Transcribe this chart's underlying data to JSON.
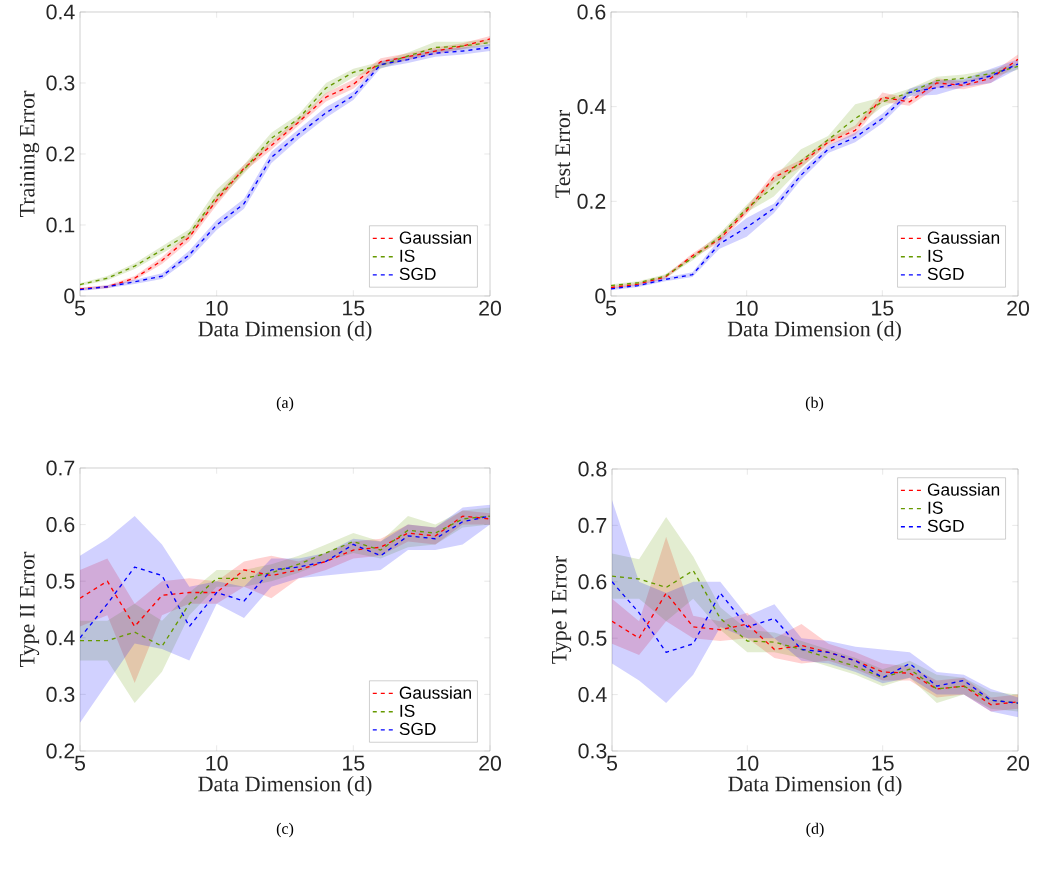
{
  "chart_data": [
    {
      "type": "line",
      "xlabel": "Data Dimension (d)",
      "ylabel": "Training Error",
      "annotations": [
        "(a)"
      ],
      "x": [
        5,
        6,
        7,
        8,
        9,
        10,
        11,
        12,
        13,
        14,
        15,
        16,
        17,
        18,
        19,
        20
      ],
      "xlim": [
        5,
        20
      ],
      "xticks": [
        5,
        10,
        15,
        20
      ],
      "ylim": [
        0,
        0.4
      ],
      "yticks": [
        0,
        0.1,
        0.2,
        0.3,
        0.4
      ],
      "legend": "bottom right",
      "line_style": "dashed",
      "series": [
        {
          "name": "Gaussian",
          "color": "#ff0000",
          "values": [
            0.01,
            0.013,
            0.025,
            0.05,
            0.083,
            0.135,
            0.18,
            0.212,
            0.245,
            0.28,
            0.298,
            0.33,
            0.337,
            0.345,
            0.352,
            0.362
          ],
          "lower": [
            0.008,
            0.011,
            0.022,
            0.045,
            0.077,
            0.128,
            0.175,
            0.206,
            0.24,
            0.274,
            0.292,
            0.324,
            0.332,
            0.34,
            0.348,
            0.357
          ],
          "upper": [
            0.012,
            0.015,
            0.028,
            0.055,
            0.089,
            0.142,
            0.185,
            0.218,
            0.25,
            0.286,
            0.305,
            0.335,
            0.342,
            0.35,
            0.356,
            0.366
          ]
        },
        {
          "name": "IS",
          "color": "#669900",
          "values": [
            0.016,
            0.025,
            0.042,
            0.065,
            0.088,
            0.14,
            0.178,
            0.222,
            0.25,
            0.293,
            0.315,
            0.325,
            0.338,
            0.35,
            0.352,
            0.357
          ],
          "lower": [
            0.014,
            0.022,
            0.038,
            0.06,
            0.082,
            0.132,
            0.172,
            0.215,
            0.244,
            0.285,
            0.308,
            0.32,
            0.333,
            0.343,
            0.347,
            0.352
          ],
          "upper": [
            0.018,
            0.028,
            0.046,
            0.07,
            0.094,
            0.15,
            0.185,
            0.23,
            0.256,
            0.3,
            0.32,
            0.33,
            0.343,
            0.358,
            0.358,
            0.362
          ]
        },
        {
          "name": "SGD",
          "color": "#0000ff",
          "values": [
            0.009,
            0.013,
            0.02,
            0.028,
            0.058,
            0.1,
            0.13,
            0.195,
            0.228,
            0.258,
            0.282,
            0.326,
            0.333,
            0.342,
            0.345,
            0.35
          ],
          "lower": [
            0.007,
            0.011,
            0.017,
            0.024,
            0.052,
            0.093,
            0.123,
            0.187,
            0.221,
            0.251,
            0.276,
            0.321,
            0.328,
            0.337,
            0.34,
            0.345
          ],
          "upper": [
            0.011,
            0.015,
            0.023,
            0.032,
            0.064,
            0.107,
            0.137,
            0.203,
            0.235,
            0.266,
            0.288,
            0.331,
            0.338,
            0.347,
            0.35,
            0.355
          ]
        }
      ]
    },
    {
      "type": "line",
      "xlabel": "Data Dimension (d)",
      "ylabel": "Test Error",
      "annotations": [
        "(b)"
      ],
      "x": [
        5,
        6,
        7,
        8,
        9,
        10,
        11,
        12,
        13,
        14,
        15,
        16,
        17,
        18,
        19,
        20
      ],
      "xlim": [
        5,
        20
      ],
      "xticks": [
        5,
        10,
        15,
        20
      ],
      "ylim": [
        0,
        0.6
      ],
      "yticks": [
        0,
        0.2,
        0.4,
        0.6
      ],
      "legend": "bottom right",
      "line_style": "dashed",
      "series": [
        {
          "name": "Gaussian",
          "color": "#ff0000",
          "values": [
            0.018,
            0.025,
            0.04,
            0.085,
            0.12,
            0.18,
            0.25,
            0.28,
            0.325,
            0.35,
            0.42,
            0.41,
            0.45,
            0.445,
            0.46,
            0.5
          ],
          "lower": [
            0.015,
            0.022,
            0.036,
            0.08,
            0.113,
            0.172,
            0.24,
            0.272,
            0.318,
            0.34,
            0.41,
            0.402,
            0.44,
            0.437,
            0.45,
            0.49
          ],
          "upper": [
            0.021,
            0.028,
            0.044,
            0.09,
            0.127,
            0.188,
            0.26,
            0.288,
            0.332,
            0.36,
            0.43,
            0.418,
            0.46,
            0.453,
            0.47,
            0.51
          ]
        },
        {
          "name": "IS",
          "color": "#669900",
          "values": [
            0.022,
            0.028,
            0.042,
            0.08,
            0.125,
            0.185,
            0.23,
            0.285,
            0.33,
            0.375,
            0.41,
            0.43,
            0.455,
            0.46,
            0.47,
            0.485
          ],
          "lower": [
            0.019,
            0.025,
            0.038,
            0.075,
            0.118,
            0.177,
            0.21,
            0.27,
            0.322,
            0.355,
            0.4,
            0.422,
            0.447,
            0.452,
            0.462,
            0.478
          ],
          "upper": [
            0.025,
            0.031,
            0.046,
            0.085,
            0.132,
            0.193,
            0.25,
            0.31,
            0.338,
            0.405,
            0.42,
            0.438,
            0.463,
            0.468,
            0.478,
            0.492
          ]
        },
        {
          "name": "SGD",
          "color": "#0000ff",
          "values": [
            0.015,
            0.022,
            0.035,
            0.045,
            0.11,
            0.145,
            0.185,
            0.255,
            0.31,
            0.335,
            0.375,
            0.43,
            0.44,
            0.45,
            0.465,
            0.49
          ],
          "lower": [
            0.012,
            0.019,
            0.031,
            0.04,
            0.1,
            0.125,
            0.175,
            0.245,
            0.302,
            0.325,
            0.365,
            0.422,
            0.425,
            0.442,
            0.45,
            0.48
          ],
          "upper": [
            0.018,
            0.025,
            0.039,
            0.05,
            0.12,
            0.165,
            0.195,
            0.265,
            0.318,
            0.345,
            0.385,
            0.438,
            0.455,
            0.458,
            0.48,
            0.5
          ]
        }
      ]
    },
    {
      "type": "line",
      "xlabel": "Data Dimension (d)",
      "ylabel": "Type II Error",
      "annotations": [
        "(c)"
      ],
      "x": [
        5,
        6,
        7,
        8,
        9,
        10,
        11,
        12,
        13,
        14,
        15,
        16,
        17,
        18,
        19,
        20
      ],
      "xlim": [
        5,
        20
      ],
      "xticks": [
        5,
        10,
        15,
        20
      ],
      "ylim": [
        0.2,
        0.7
      ],
      "yticks": [
        0.2,
        0.3,
        0.4,
        0.5,
        0.6,
        0.7
      ],
      "legend": "bottom right",
      "line_style": "dashed",
      "series": [
        {
          "name": "Gaussian",
          "color": "#ff0000",
          "values": [
            0.47,
            0.5,
            0.42,
            0.475,
            0.48,
            0.48,
            0.52,
            0.51,
            0.52,
            0.535,
            0.555,
            0.56,
            0.585,
            0.58,
            0.615,
            0.61
          ],
          "lower": [
            0.42,
            0.44,
            0.32,
            0.44,
            0.46,
            0.46,
            0.49,
            0.47,
            0.505,
            0.52,
            0.54,
            0.545,
            0.57,
            0.565,
            0.6,
            0.6
          ],
          "upper": [
            0.52,
            0.54,
            0.46,
            0.5,
            0.505,
            0.5,
            0.535,
            0.545,
            0.535,
            0.55,
            0.57,
            0.575,
            0.6,
            0.595,
            0.625,
            0.62
          ]
        },
        {
          "name": "IS",
          "color": "#669900",
          "values": [
            0.395,
            0.395,
            0.41,
            0.385,
            0.46,
            0.505,
            0.505,
            0.515,
            0.53,
            0.55,
            0.57,
            0.555,
            0.59,
            0.585,
            0.61,
            0.615
          ],
          "lower": [
            0.36,
            0.36,
            0.285,
            0.34,
            0.44,
            0.49,
            0.49,
            0.5,
            0.515,
            0.535,
            0.55,
            0.54,
            0.56,
            0.565,
            0.595,
            0.6
          ],
          "upper": [
            0.43,
            0.43,
            0.46,
            0.43,
            0.48,
            0.52,
            0.52,
            0.53,
            0.545,
            0.565,
            0.585,
            0.57,
            0.615,
            0.6,
            0.625,
            0.63
          ]
        },
        {
          "name": "SGD",
          "color": "#0000ff",
          "values": [
            0.4,
            0.46,
            0.525,
            0.51,
            0.42,
            0.48,
            0.465,
            0.52,
            0.525,
            0.535,
            0.565,
            0.545,
            0.58,
            0.575,
            0.605,
            0.615
          ],
          "lower": [
            0.25,
            0.32,
            0.39,
            0.38,
            0.36,
            0.46,
            0.435,
            0.49,
            0.505,
            0.51,
            0.515,
            0.52,
            0.555,
            0.555,
            0.565,
            0.6
          ],
          "upper": [
            0.545,
            0.575,
            0.615,
            0.565,
            0.49,
            0.5,
            0.49,
            0.54,
            0.54,
            0.55,
            0.575,
            0.57,
            0.6,
            0.595,
            0.63,
            0.635
          ]
        }
      ]
    },
    {
      "type": "line",
      "xlabel": "Data Dimension (d)",
      "ylabel": "Type I Error",
      "annotations": [
        "(d)"
      ],
      "x": [
        5,
        6,
        7,
        8,
        9,
        10,
        11,
        12,
        13,
        14,
        15,
        16,
        17,
        18,
        19,
        20
      ],
      "xlim": [
        5,
        20
      ],
      "xticks": [
        5,
        10,
        15,
        20
      ],
      "ylim": [
        0.3,
        0.8
      ],
      "yticks": [
        0.3,
        0.4,
        0.5,
        0.6,
        0.7,
        0.8
      ],
      "legend": "top right",
      "line_style": "dashed",
      "series": [
        {
          "name": "Gaussian",
          "color": "#ff0000",
          "values": [
            0.53,
            0.5,
            0.58,
            0.52,
            0.515,
            0.525,
            0.48,
            0.487,
            0.475,
            0.46,
            0.44,
            0.438,
            0.41,
            0.415,
            0.382,
            0.387
          ],
          "lower": [
            0.49,
            0.47,
            0.53,
            0.5,
            0.495,
            0.5,
            0.465,
            0.455,
            0.46,
            0.445,
            0.425,
            0.425,
            0.395,
            0.4,
            0.37,
            0.375
          ],
          "upper": [
            0.57,
            0.53,
            0.68,
            0.54,
            0.53,
            0.545,
            0.5,
            0.525,
            0.49,
            0.475,
            0.455,
            0.45,
            0.425,
            0.43,
            0.395,
            0.4
          ]
        },
        {
          "name": "IS",
          "color": "#669900",
          "values": [
            0.61,
            0.605,
            0.59,
            0.62,
            0.535,
            0.495,
            0.493,
            0.48,
            0.465,
            0.45,
            0.43,
            0.445,
            0.41,
            0.415,
            0.39,
            0.385
          ],
          "lower": [
            0.57,
            0.57,
            0.53,
            0.57,
            0.515,
            0.475,
            0.475,
            0.465,
            0.45,
            0.435,
            0.415,
            0.43,
            0.385,
            0.4,
            0.375,
            0.37
          ],
          "upper": [
            0.65,
            0.64,
            0.715,
            0.645,
            0.555,
            0.515,
            0.51,
            0.495,
            0.48,
            0.465,
            0.445,
            0.46,
            0.435,
            0.43,
            0.405,
            0.4
          ]
        },
        {
          "name": "SGD",
          "color": "#0000ff",
          "values": [
            0.6,
            0.545,
            0.475,
            0.49,
            0.58,
            0.52,
            0.535,
            0.48,
            0.475,
            0.46,
            0.43,
            0.455,
            0.415,
            0.425,
            0.39,
            0.385
          ],
          "lower": [
            0.455,
            0.425,
            0.385,
            0.435,
            0.52,
            0.5,
            0.5,
            0.46,
            0.455,
            0.44,
            0.42,
            0.43,
            0.4,
            0.4,
            0.37,
            0.36
          ],
          "upper": [
            0.745,
            0.6,
            0.58,
            0.6,
            0.6,
            0.54,
            0.56,
            0.5,
            0.495,
            0.485,
            0.48,
            0.475,
            0.44,
            0.435,
            0.41,
            0.395
          ]
        }
      ]
    }
  ]
}
